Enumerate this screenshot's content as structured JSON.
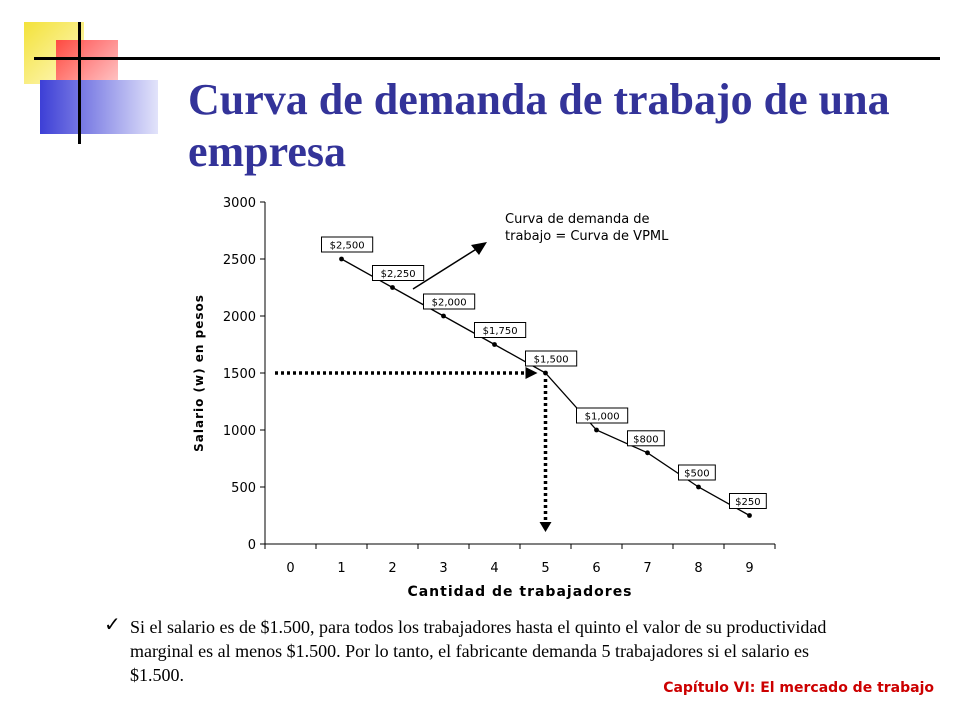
{
  "slide": {
    "title": "Curva de demanda de trabajo de una empresa",
    "bullet": "Si el salario es de $1.500, para todos los trabajadores hasta el quinto el valor de su productividad marginal es al menos $1.500. Por lo tanto, el fabricante demanda 5 trabajadores si el salario es $1.500.",
    "footer": "Capítulo VI: El mercado de trabajo",
    "colors": {
      "title": "#333399",
      "footer": "#cc0000"
    }
  },
  "chart_data": {
    "type": "line",
    "xlabel": "Cantidad de trabajadores",
    "ylabel": "Salario (w) en pesos",
    "x_ticks": [
      "0",
      "1",
      "2",
      "3",
      "4",
      "5",
      "6",
      "7",
      "8",
      "9"
    ],
    "y_ticks": [
      "0",
      "500",
      "1000",
      "1500",
      "2000",
      "2500",
      "3000"
    ],
    "ylim": [
      0,
      3000
    ],
    "x": [
      1,
      2,
      3,
      4,
      5,
      6,
      7,
      8,
      9
    ],
    "values": [
      2500,
      2250,
      2000,
      1750,
      1500,
      1000,
      800,
      500,
      250
    ],
    "point_labels": [
      "$2,500",
      "$2,250",
      "$2,000",
      "$1,750",
      "$1,500",
      "$1,000",
      "$800",
      "$500",
      "$250"
    ],
    "annotation": {
      "line1": "Curva de demanda de",
      "line2": "trabajo = Curva de VPML"
    },
    "reference": {
      "x": 5,
      "y": 1500
    },
    "grid": false,
    "legend": "none"
  }
}
